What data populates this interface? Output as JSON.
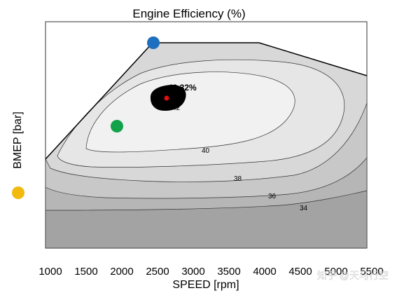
{
  "chart_data": {
    "type": "contour",
    "title": "Engine Efficiency (%)",
    "xlabel": "SPEED [rpm]",
    "ylabel": "BMEP [bar]",
    "xlim": [
      1000,
      5500
    ],
    "x_ticks": [
      "1000",
      "1500",
      "2000",
      "2500",
      "3000",
      "3500",
      "4000",
      "4500",
      "5000",
      "5500"
    ],
    "contour_levels": [
      {
        "label": "34",
        "x": 4650
      },
      {
        "label": "36",
        "x": 4200
      },
      {
        "label": "38",
        "x": 3750
      },
      {
        "label": "40",
        "x": 3280
      },
      {
        "label": "42",
        "x": 2850
      }
    ],
    "peak": {
      "label": "43.32%",
      "x": 2700,
      "color": "#e01010"
    },
    "markers": [
      {
        "name": "blue-marker",
        "x": 2500,
        "color": "#1f6fbf"
      },
      {
        "name": "green-marker",
        "x": 2000,
        "color": "#13a24a"
      },
      {
        "name": "yellow-marker",
        "color": "#f2b90f"
      }
    ],
    "fill_colors": [
      "#a3a3a3",
      "#b6b6b6",
      "#c8c8c8",
      "#d8d8d8",
      "#e6e6e6",
      "#f1f1f1"
    ]
  },
  "watermark": "知乎 @天马行空"
}
